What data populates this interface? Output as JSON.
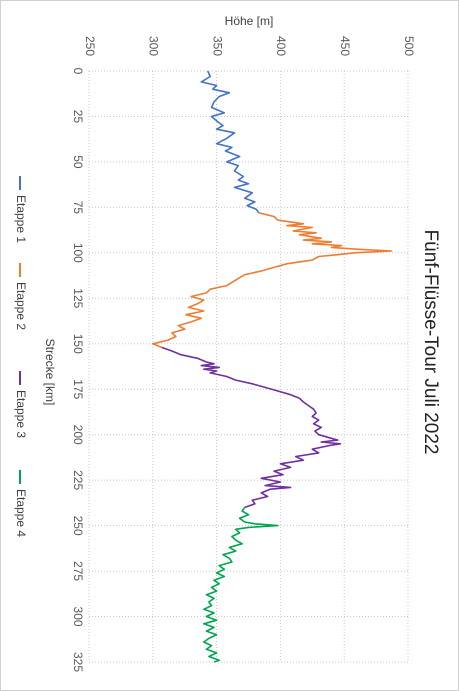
{
  "chart_data": {
    "type": "line",
    "title": "Fünf-Flüsse-Tour Juli 2022",
    "xlabel": "Strecke [km]",
    "ylabel": "Höhe [m]",
    "xlim": [
      0,
      325
    ],
    "ylim": [
      250,
      500
    ],
    "x_ticks": [
      0,
      25,
      50,
      75,
      100,
      125,
      150,
      175,
      200,
      225,
      250,
      275,
      300,
      325
    ],
    "y_ticks": [
      250,
      300,
      350,
      400,
      450,
      500
    ],
    "grid": "dotted",
    "orientation": "rotated 90° clockwise",
    "legend_position": "bottom",
    "series": [
      {
        "name": "Etappe 1",
        "color": "#4472C4",
        "x": [
          0,
          3,
          6,
          8,
          10,
          12,
          14,
          17,
          20,
          23,
          25,
          28,
          30,
          32,
          34,
          37,
          40,
          42,
          44,
          47,
          50,
          52,
          55,
          58,
          60,
          62,
          64,
          67,
          70,
          72,
          74,
          76,
          78
        ],
        "y": [
          343,
          345,
          338,
          350,
          347,
          360,
          352,
          348,
          346,
          356,
          346,
          351,
          355,
          350,
          364,
          358,
          350,
          362,
          357,
          368,
          358,
          367,
          364,
          371,
          367,
          375,
          364,
          378,
          372,
          380,
          374,
          381,
          383
        ]
      },
      {
        "name": "Etappe 2",
        "color": "#ED7D31",
        "x": [
          78,
          80,
          82,
          84,
          85,
          86,
          88,
          89,
          90,
          92,
          93,
          94,
          95,
          96,
          97,
          98,
          99,
          100,
          101,
          102,
          104,
          106,
          108,
          110,
          112,
          115,
          118,
          120,
          122,
          124,
          126,
          128,
          130,
          132,
          134,
          136,
          138,
          140,
          142,
          144,
          146,
          148,
          150,
          152
        ],
        "y": [
          383,
          395,
          398,
          418,
          405,
          425,
          410,
          428,
          415,
          432,
          418,
          440,
          425,
          448,
          440,
          460,
          487,
          458,
          445,
          430,
          425,
          405,
          395,
          385,
          372,
          365,
          358,
          345,
          342,
          330,
          340,
          335,
          328,
          340,
          326,
          338,
          330,
          320,
          325,
          315,
          318,
          312,
          300,
          307
        ]
      },
      {
        "name": "Etappe 3",
        "color": "#7030A0",
        "x": [
          152,
          154,
          156,
          158,
          160,
          161,
          162,
          163,
          164,
          165,
          166,
          168,
          170,
          172,
          174,
          176,
          178,
          180,
          182,
          184,
          186,
          188,
          190,
          192,
          194,
          196,
          198,
          200,
          202,
          203,
          204,
          205,
          206,
          208,
          210,
          212,
          214,
          216,
          218,
          220,
          222,
          224,
          226,
          228,
          229,
          230,
          232,
          234,
          236,
          238,
          240
        ],
        "y": [
          307,
          315,
          322,
          335,
          342,
          348,
          338,
          352,
          340,
          350,
          345,
          358,
          365,
          378,
          388,
          398,
          408,
          415,
          418,
          422,
          426,
          428,
          425,
          430,
          426,
          432,
          427,
          430,
          440,
          445,
          432,
          447,
          438,
          425,
          430,
          412,
          418,
          400,
          408,
          395,
          402,
          385,
          400,
          388,
          408,
          392,
          385,
          390,
          378,
          380,
          372
        ]
      },
      {
        "name": "Etappe 4",
        "color": "#00A651",
        "x": [
          240,
          242,
          244,
          246,
          248,
          249,
          250,
          251,
          252,
          254,
          256,
          258,
          260,
          262,
          264,
          266,
          268,
          270,
          272,
          274,
          276,
          278,
          280,
          282,
          284,
          286,
          288,
          290,
          292,
          294,
          296,
          298,
          300,
          302,
          304,
          306,
          308,
          310,
          312,
          314,
          316,
          318,
          320,
          322,
          324,
          325
        ],
        "y": [
          372,
          370,
          375,
          368,
          372,
          380,
          398,
          375,
          365,
          368,
          362,
          365,
          370,
          360,
          365,
          355,
          360,
          362,
          352,
          356,
          350,
          356,
          348,
          352,
          346,
          350,
          342,
          348,
          344,
          346,
          340,
          348,
          342,
          350,
          340,
          348,
          342,
          350,
          344,
          340,
          346,
          342,
          350,
          344,
          352,
          348
        ]
      }
    ]
  }
}
